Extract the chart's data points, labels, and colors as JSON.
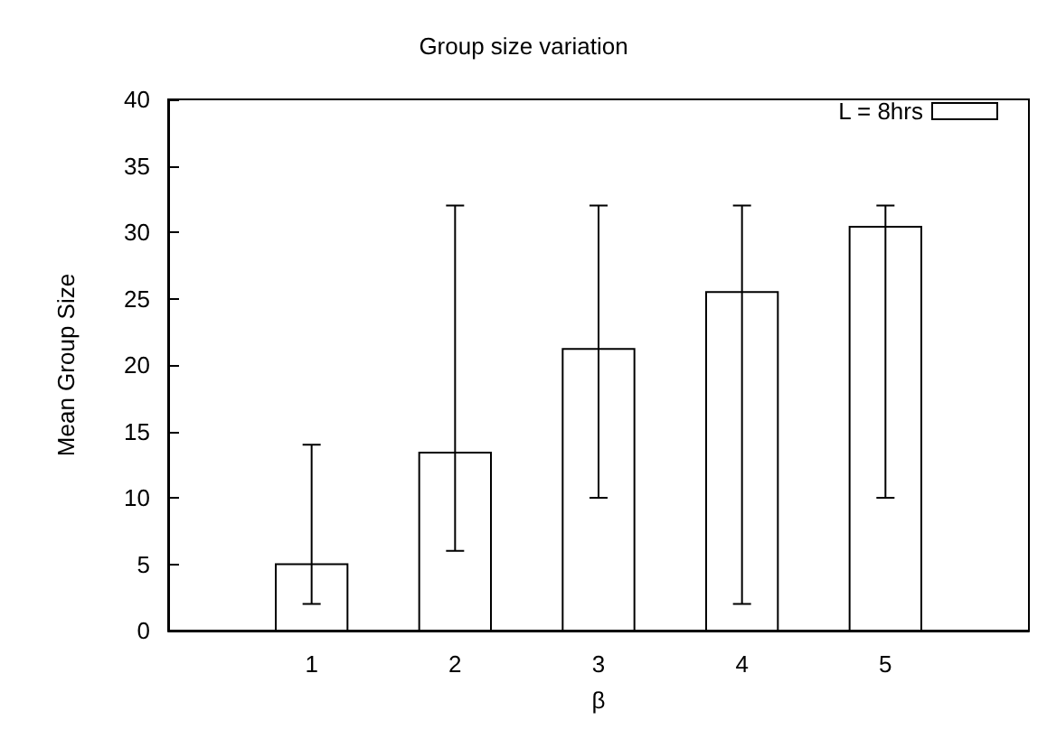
{
  "chart_data": {
    "type": "bar",
    "title": "Group size variation",
    "xlabel": "β",
    "ylabel": "Mean Group Size",
    "x": [
      1,
      2,
      3,
      4,
      5
    ],
    "series": [
      {
        "name": "L = 8hrs",
        "color": "#ffffff",
        "values": [
          5,
          13.4,
          21.2,
          25.5,
          30.4
        ],
        "errors": [
          [
            2,
            14
          ],
          [
            6,
            32
          ],
          [
            10,
            32
          ],
          [
            2,
            32
          ],
          [
            10,
            32
          ]
        ]
      }
    ],
    "xlim": [
      0,
      6
    ],
    "xticks": [
      1,
      2,
      3,
      4,
      5
    ],
    "ylim": [
      0,
      40
    ],
    "yticks": [
      0,
      5,
      10,
      15,
      20,
      25,
      30,
      35,
      40
    ],
    "grid": false,
    "legend": "top right"
  }
}
